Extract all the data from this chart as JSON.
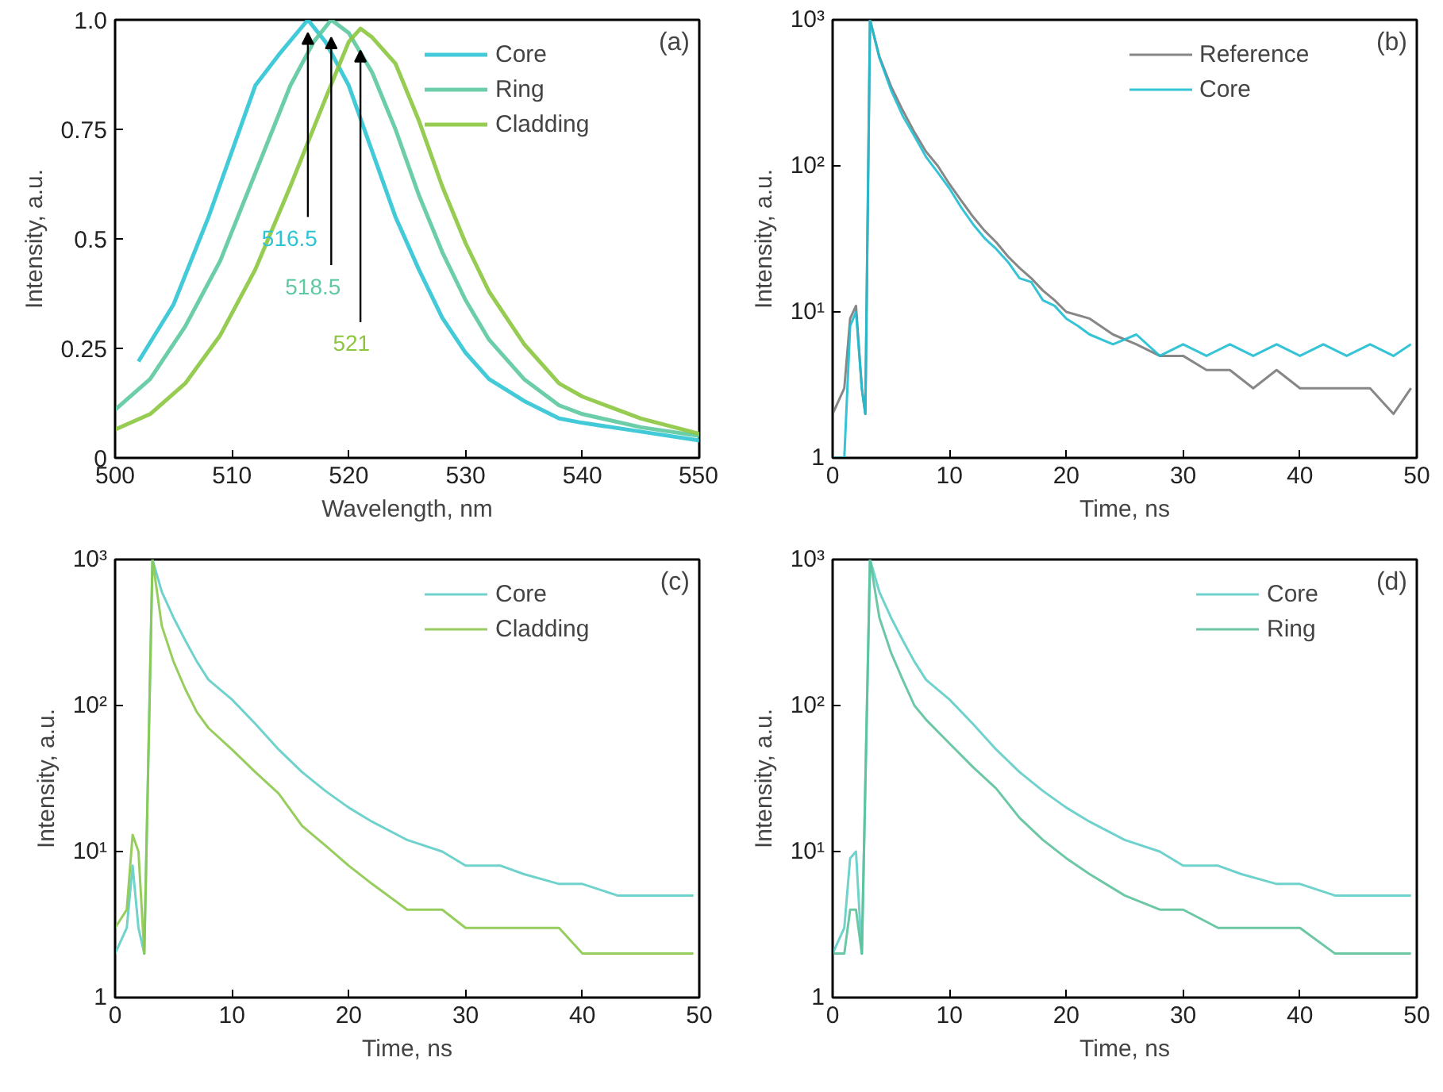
{
  "chart_data": [
    {
      "type": "line",
      "xlabel": "Wavelength, nm",
      "ylabel": "Intensity, a.u.",
      "xlim": [
        500,
        550
      ],
      "ylim": [
        0,
        1.0
      ],
      "xticks": [
        500,
        510,
        520,
        530,
        540,
        550
      ],
      "yticks": [
        0,
        0.25,
        0.5,
        0.75,
        {
          "value": 1.0,
          "label": "1.0"
        }
      ],
      "legend": "top right",
      "annotations": [
        "(a)",
        {
          "text": "516.5",
          "x": 516.5,
          "y": 0.97
        },
        {
          "text": "518.5",
          "x": 518.5,
          "y": 0.96
        },
        {
          "text": "521",
          "x": 521,
          "y": 0.93
        }
      ],
      "series": [
        {
          "name": "Core",
          "color": "#2ec4d4",
          "x": [
            502,
            505,
            508,
            510,
            512,
            514,
            516.5,
            518,
            520,
            522,
            524,
            526,
            528,
            530,
            532,
            535,
            538,
            540,
            545,
            550
          ],
          "values": [
            0.22,
            0.35,
            0.55,
            0.7,
            0.85,
            0.92,
            1.0,
            0.95,
            0.85,
            0.7,
            0.55,
            0.43,
            0.32,
            0.24,
            0.18,
            0.13,
            0.09,
            0.08,
            0.06,
            0.04
          ]
        },
        {
          "name": "Ring",
          "color": "#5cc9a0",
          "x": [
            500,
            503,
            506,
            509,
            512,
            515,
            517,
            518.5,
            520,
            522,
            524,
            526,
            528,
            530,
            532,
            535,
            538,
            540,
            545,
            550
          ],
          "values": [
            0.11,
            0.18,
            0.3,
            0.45,
            0.65,
            0.85,
            0.95,
            1.0,
            0.97,
            0.88,
            0.75,
            0.6,
            0.47,
            0.36,
            0.27,
            0.18,
            0.12,
            0.1,
            0.07,
            0.05
          ]
        },
        {
          "name": "Cladding",
          "color": "#8cc63f",
          "x": [
            500,
            503,
            506,
            509,
            512,
            515,
            518,
            520,
            521,
            522,
            524,
            526,
            528,
            530,
            532,
            535,
            538,
            540,
            545,
            550
          ],
          "values": [
            0.065,
            0.1,
            0.17,
            0.28,
            0.43,
            0.62,
            0.82,
            0.95,
            0.98,
            0.96,
            0.9,
            0.77,
            0.62,
            0.49,
            0.38,
            0.26,
            0.17,
            0.14,
            0.09,
            0.055
          ]
        }
      ]
    },
    {
      "type": "line",
      "xlabel": "Time, ns",
      "ylabel": "Intensity, a.u.",
      "log": "y",
      "xlim": [
        0,
        50
      ],
      "ylim": [
        1,
        1000
      ],
      "xticks": [
        0,
        10,
        20,
        30,
        40,
        50
      ],
      "yticks": [
        1,
        {
          "value": 10,
          "label": "10¹"
        },
        {
          "value": 100,
          "label": "10²"
        },
        {
          "value": 1000,
          "label": "10³"
        }
      ],
      "legend": "top right",
      "annotations": [
        "(b)"
      ],
      "series": [
        {
          "name": "Reference",
          "color": "#7a7a7a",
          "x": [
            0,
            1,
            1.5,
            2,
            2.5,
            2.8,
            3.2,
            4,
            5,
            6,
            7,
            8,
            9,
            10,
            11,
            12,
            13,
            14,
            15,
            16,
            17,
            18,
            19,
            20,
            22,
            24,
            26,
            28,
            30,
            32,
            34,
            36,
            38,
            40,
            42,
            44,
            46,
            48,
            49.5
          ],
          "values": [
            2,
            3,
            9,
            11,
            3,
            2,
            1000,
            560,
            350,
            240,
            170,
            125,
            100,
            75,
            58,
            45,
            36,
            30,
            24,
            20,
            17,
            14,
            12,
            10,
            9,
            7,
            6,
            5,
            5,
            4,
            4,
            3,
            4,
            3,
            3,
            3,
            3,
            2,
            3
          ]
        },
        {
          "name": "Core",
          "color": "#1fbcd2",
          "x": [
            0,
            1,
            1.5,
            2,
            2.5,
            2.8,
            3.2,
            4,
            5,
            6,
            7,
            8,
            9,
            10,
            11,
            12,
            13,
            14,
            15,
            16,
            17,
            18,
            19,
            20,
            21,
            22,
            24,
            26,
            28,
            30,
            32,
            34,
            36,
            38,
            40,
            42,
            44,
            46,
            48,
            49.5
          ],
          "values": [
            1,
            1,
            8,
            10,
            3,
            2,
            1000,
            550,
            330,
            220,
            160,
            115,
            90,
            70,
            52,
            40,
            32,
            27,
            22,
            17,
            16,
            12,
            11,
            9,
            8,
            7,
            6,
            7,
            5,
            6,
            5,
            6,
            5,
            6,
            5,
            6,
            5,
            6,
            5,
            6
          ]
        }
      ]
    },
    {
      "type": "line",
      "xlabel": "Time, ns",
      "ylabel": "Intensity, a.u.",
      "log": "y",
      "xlim": [
        0,
        50
      ],
      "ylim": [
        1,
        1000
      ],
      "xticks": [
        0,
        10,
        20,
        30,
        40,
        50
      ],
      "yticks": [
        1,
        {
          "value": 10,
          "label": "10¹"
        },
        {
          "value": 100,
          "label": "10²"
        },
        {
          "value": 1000,
          "label": "10³"
        }
      ],
      "legend": "top right",
      "annotations": [
        "(c)"
      ],
      "series": [
        {
          "name": "Core",
          "color": "#5fcdc7",
          "x": [
            0,
            1,
            1.5,
            2,
            2.5,
            3.2,
            4,
            5,
            6,
            7,
            8,
            10,
            12,
            14,
            16,
            18,
            20,
            22,
            25,
            28,
            30,
            33,
            35,
            38,
            40,
            43,
            45,
            48,
            49.5
          ],
          "values": [
            2,
            3,
            8,
            3,
            2,
            1000,
            600,
            400,
            280,
            200,
            150,
            110,
            75,
            50,
            35,
            26,
            20,
            16,
            12,
            10,
            8,
            8,
            7,
            6,
            6,
            5,
            5,
            5,
            5
          ]
        },
        {
          "name": "Cladding",
          "color": "#8cc84b",
          "x": [
            0,
            1,
            1.5,
            2,
            2.5,
            3.2,
            4,
            5,
            6,
            7,
            8,
            10,
            12,
            14,
            16,
            18,
            20,
            22,
            25,
            28,
            30,
            33,
            35,
            38,
            40,
            43,
            45,
            48,
            49.5
          ],
          "values": [
            3,
            4,
            13,
            10,
            2,
            1000,
            350,
            200,
            130,
            90,
            70,
            50,
            35,
            25,
            15,
            11,
            8,
            6,
            4,
            4,
            3,
            3,
            3,
            3,
            2,
            2,
            2,
            2,
            2
          ]
        }
      ]
    },
    {
      "type": "line",
      "xlabel": "Time, ns",
      "ylabel": "Intensity, a.u.",
      "log": "y",
      "xlim": [
        0,
        50
      ],
      "ylim": [
        1,
        1000
      ],
      "xticks": [
        0,
        10,
        20,
        30,
        40,
        50
      ],
      "yticks": [
        1,
        {
          "value": 10,
          "label": "10¹"
        },
        {
          "value": 100,
          "label": "10²"
        },
        {
          "value": 1000,
          "label": "10³"
        }
      ],
      "legend": "top right",
      "annotations": [
        "(d)"
      ],
      "series": [
        {
          "name": "Core",
          "color": "#5fcdc7",
          "x": [
            0,
            1,
            1.5,
            2,
            2.5,
            3.2,
            4,
            5,
            6,
            7,
            8,
            10,
            12,
            14,
            16,
            18,
            20,
            22,
            25,
            28,
            30,
            33,
            35,
            38,
            40,
            43,
            45,
            48,
            49.5
          ],
          "values": [
            2,
            3,
            9,
            10,
            2,
            1000,
            600,
            400,
            280,
            200,
            150,
            110,
            75,
            50,
            35,
            26,
            20,
            16,
            12,
            10,
            8,
            8,
            7,
            6,
            6,
            5,
            5,
            5,
            5
          ]
        },
        {
          "name": "Ring",
          "color": "#5cc29a",
          "x": [
            0,
            1,
            1.5,
            2,
            2.5,
            3.2,
            4,
            5,
            6,
            7,
            8,
            10,
            12,
            14,
            16,
            18,
            20,
            22,
            25,
            28,
            30,
            33,
            35,
            38,
            40,
            43,
            45,
            48,
            49.5
          ],
          "values": [
            2,
            2,
            4,
            4,
            2,
            1000,
            400,
            230,
            150,
            100,
            80,
            55,
            38,
            27,
            17,
            12,
            9,
            7,
            5,
            4,
            4,
            3,
            3,
            3,
            3,
            2,
            2,
            2,
            2
          ]
        }
      ]
    }
  ]
}
